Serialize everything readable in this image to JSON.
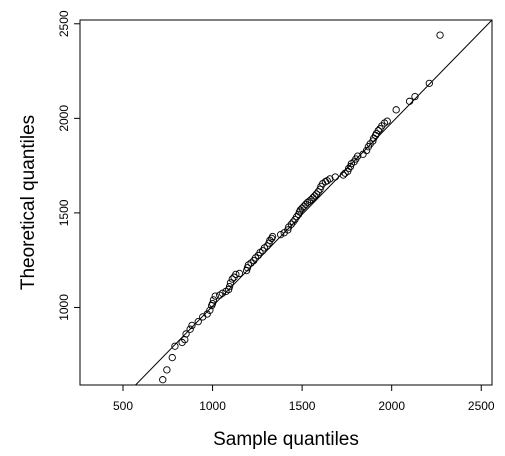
{
  "chart_data": {
    "type": "scatter",
    "title": "",
    "xlabel": "Sample quantiles",
    "ylabel": "Theoretical quantiles",
    "xlim": [
      260,
      2560
    ],
    "ylim": [
      590,
      2520
    ],
    "xticks": [
      500,
      1000,
      1500,
      2000,
      2500
    ],
    "yticks": [
      1000,
      1500,
      2000,
      2500
    ],
    "grid": false,
    "legend": "none",
    "reference_line": {
      "from": [
        570,
        590
      ],
      "to": [
        2560,
        2520
      ]
    },
    "series": [
      {
        "marker": "open-circle",
        "points": [
          [
            722,
            618
          ],
          [
            745,
            670
          ],
          [
            775,
            735
          ],
          [
            790,
            795
          ],
          [
            830,
            815
          ],
          [
            845,
            830
          ],
          [
            852,
            860
          ],
          [
            875,
            885
          ],
          [
            885,
            905
          ],
          [
            920,
            925
          ],
          [
            945,
            950
          ],
          [
            970,
            965
          ],
          [
            985,
            985
          ],
          [
            995,
            1010
          ],
          [
            1000,
            1020
          ],
          [
            1005,
            1040
          ],
          [
            1015,
            1060
          ],
          [
            1040,
            1065
          ],
          [
            1055,
            1075
          ],
          [
            1075,
            1085
          ],
          [
            1090,
            1095
          ],
          [
            1095,
            1110
          ],
          [
            1100,
            1130
          ],
          [
            1110,
            1150
          ],
          [
            1120,
            1160
          ],
          [
            1130,
            1175
          ],
          [
            1150,
            1180
          ],
          [
            1190,
            1195
          ],
          [
            1195,
            1210
          ],
          [
            1200,
            1225
          ],
          [
            1215,
            1235
          ],
          [
            1230,
            1248
          ],
          [
            1240,
            1262
          ],
          [
            1255,
            1275
          ],
          [
            1265,
            1290
          ],
          [
            1280,
            1300
          ],
          [
            1290,
            1315
          ],
          [
            1305,
            1325
          ],
          [
            1315,
            1340
          ],
          [
            1320,
            1355
          ],
          [
            1330,
            1365
          ],
          [
            1335,
            1375
          ],
          [
            1380,
            1385
          ],
          [
            1400,
            1395
          ],
          [
            1420,
            1410
          ],
          [
            1425,
            1425
          ],
          [
            1440,
            1440
          ],
          [
            1450,
            1452
          ],
          [
            1460,
            1465
          ],
          [
            1470,
            1480
          ],
          [
            1480,
            1492
          ],
          [
            1485,
            1505
          ],
          [
            1490,
            1515
          ],
          [
            1500,
            1525
          ],
          [
            1510,
            1535
          ],
          [
            1520,
            1545
          ],
          [
            1530,
            1555
          ],
          [
            1540,
            1562
          ],
          [
            1550,
            1570
          ],
          [
            1560,
            1580
          ],
          [
            1570,
            1590
          ],
          [
            1580,
            1600
          ],
          [
            1590,
            1612
          ],
          [
            1600,
            1625
          ],
          [
            1605,
            1640
          ],
          [
            1615,
            1655
          ],
          [
            1630,
            1665
          ],
          [
            1640,
            1670
          ],
          [
            1655,
            1680
          ],
          [
            1685,
            1690
          ],
          [
            1730,
            1700
          ],
          [
            1740,
            1710
          ],
          [
            1755,
            1720
          ],
          [
            1760,
            1735
          ],
          [
            1770,
            1745
          ],
          [
            1775,
            1760
          ],
          [
            1790,
            1770
          ],
          [
            1800,
            1785
          ],
          [
            1810,
            1800
          ],
          [
            1840,
            1810
          ],
          [
            1860,
            1830
          ],
          [
            1870,
            1850
          ],
          [
            1880,
            1865
          ],
          [
            1895,
            1880
          ],
          [
            1900,
            1895
          ],
          [
            1910,
            1910
          ],
          [
            1915,
            1920
          ],
          [
            1925,
            1935
          ],
          [
            1935,
            1945
          ],
          [
            1945,
            1960
          ],
          [
            1960,
            1975
          ],
          [
            1975,
            1985
          ],
          [
            2025,
            2045
          ],
          [
            2100,
            2090
          ],
          [
            2130,
            2115
          ],
          [
            2210,
            2185
          ],
          [
            2270,
            2440
          ]
        ]
      }
    ]
  }
}
